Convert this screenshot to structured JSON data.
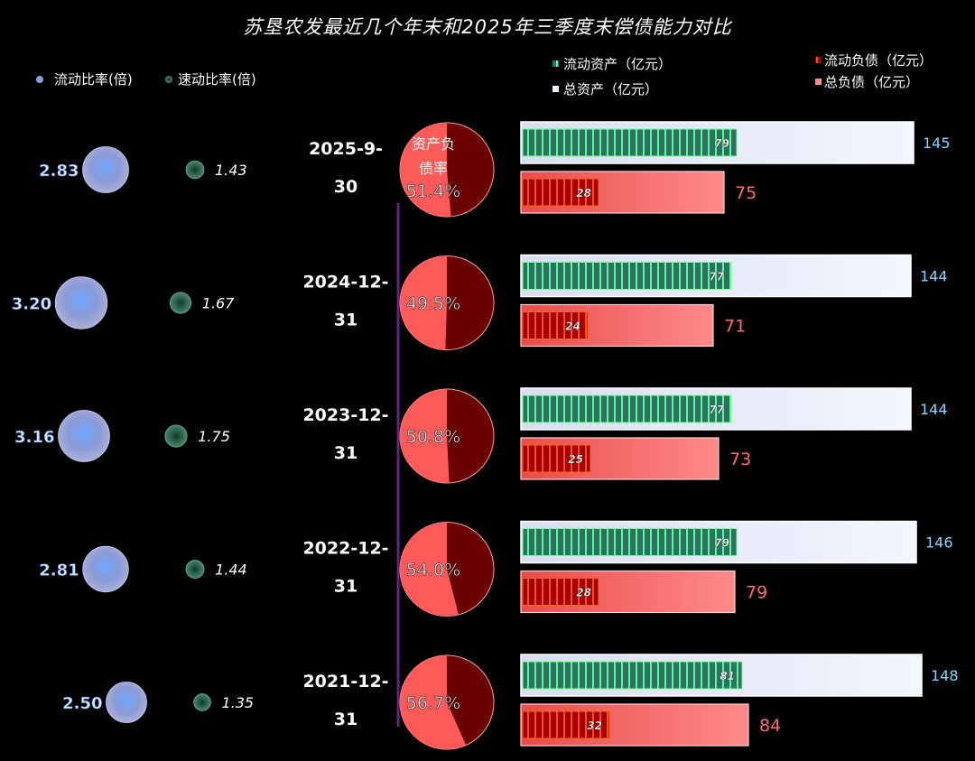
{
  "title": "苏垦农发最近几个年末和2025年三季度末偿债能力对比",
  "legend": {
    "current_ratio": "流动比率(倍)",
    "quick_ratio": "速动比率(倍)",
    "current_assets": "流动资产（亿元）",
    "total_assets": "总资产（亿元）",
    "current_liabilities": "流动负债（亿元）",
    "total_liabilities": "总负债（亿元）"
  },
  "ratio_caption": [
    "资产负",
    "债率"
  ],
  "colors": {
    "background": "#000000",
    "current_assets": "#2e7d6a",
    "current_assets_stripe": "#4cff7a",
    "total_assets": "#eef2ff",
    "current_liabilities": "#b30000",
    "current_liabilities_stripe": "#ff3300",
    "total_liabilities": "#ff6b6b",
    "current_ratio_bubble": "#8899dd",
    "quick_ratio_bubble": "#2f6f55",
    "asset_value_text": "#7fd7ff",
    "liability_value_text": "#ff6b6b",
    "pie_main": "#ff5a5a",
    "pie_dark": "#6b0000"
  },
  "chart_data": {
    "type": "bar",
    "categories": [
      [
        "2025-9-",
        "30"
      ],
      [
        "2024-12-",
        "31"
      ],
      [
        "2023-12-",
        "31"
      ],
      [
        "2022-12-",
        "31"
      ],
      [
        "2021-12-",
        "31"
      ]
    ],
    "series": [
      {
        "name": "流动资产（亿元）",
        "values": [
          79,
          77,
          77,
          79,
          81
        ]
      },
      {
        "name": "总资产（亿元）",
        "values": [
          145,
          144,
          144,
          146,
          148
        ]
      },
      {
        "name": "流动负债（亿元）",
        "values": [
          28,
          24,
          25,
          28,
          32
        ]
      },
      {
        "name": "总负债（亿元）",
        "values": [
          75,
          71,
          73,
          79,
          84
        ]
      },
      {
        "name": "流动比率(倍)",
        "values": [
          2.83,
          3.2,
          3.16,
          2.81,
          2.5
        ]
      },
      {
        "name": "速动比率(倍)",
        "values": [
          1.43,
          1.67,
          1.75,
          1.44,
          1.35
        ]
      }
    ],
    "debt_ratio_labels": [
      "51.4%",
      "49.5%",
      "50.8%",
      "54.0%",
      "56.7%"
    ],
    "debt_ratio": [
      0.514,
      0.495,
      0.508,
      0.54,
      0.567
    ],
    "current_ratio_labels": [
      "2.83",
      "3.20",
      "3.16",
      "2.81",
      "2.50"
    ],
    "quick_ratio_labels": [
      "1.43",
      "1.67",
      "1.75",
      "1.44",
      "1.35"
    ]
  }
}
